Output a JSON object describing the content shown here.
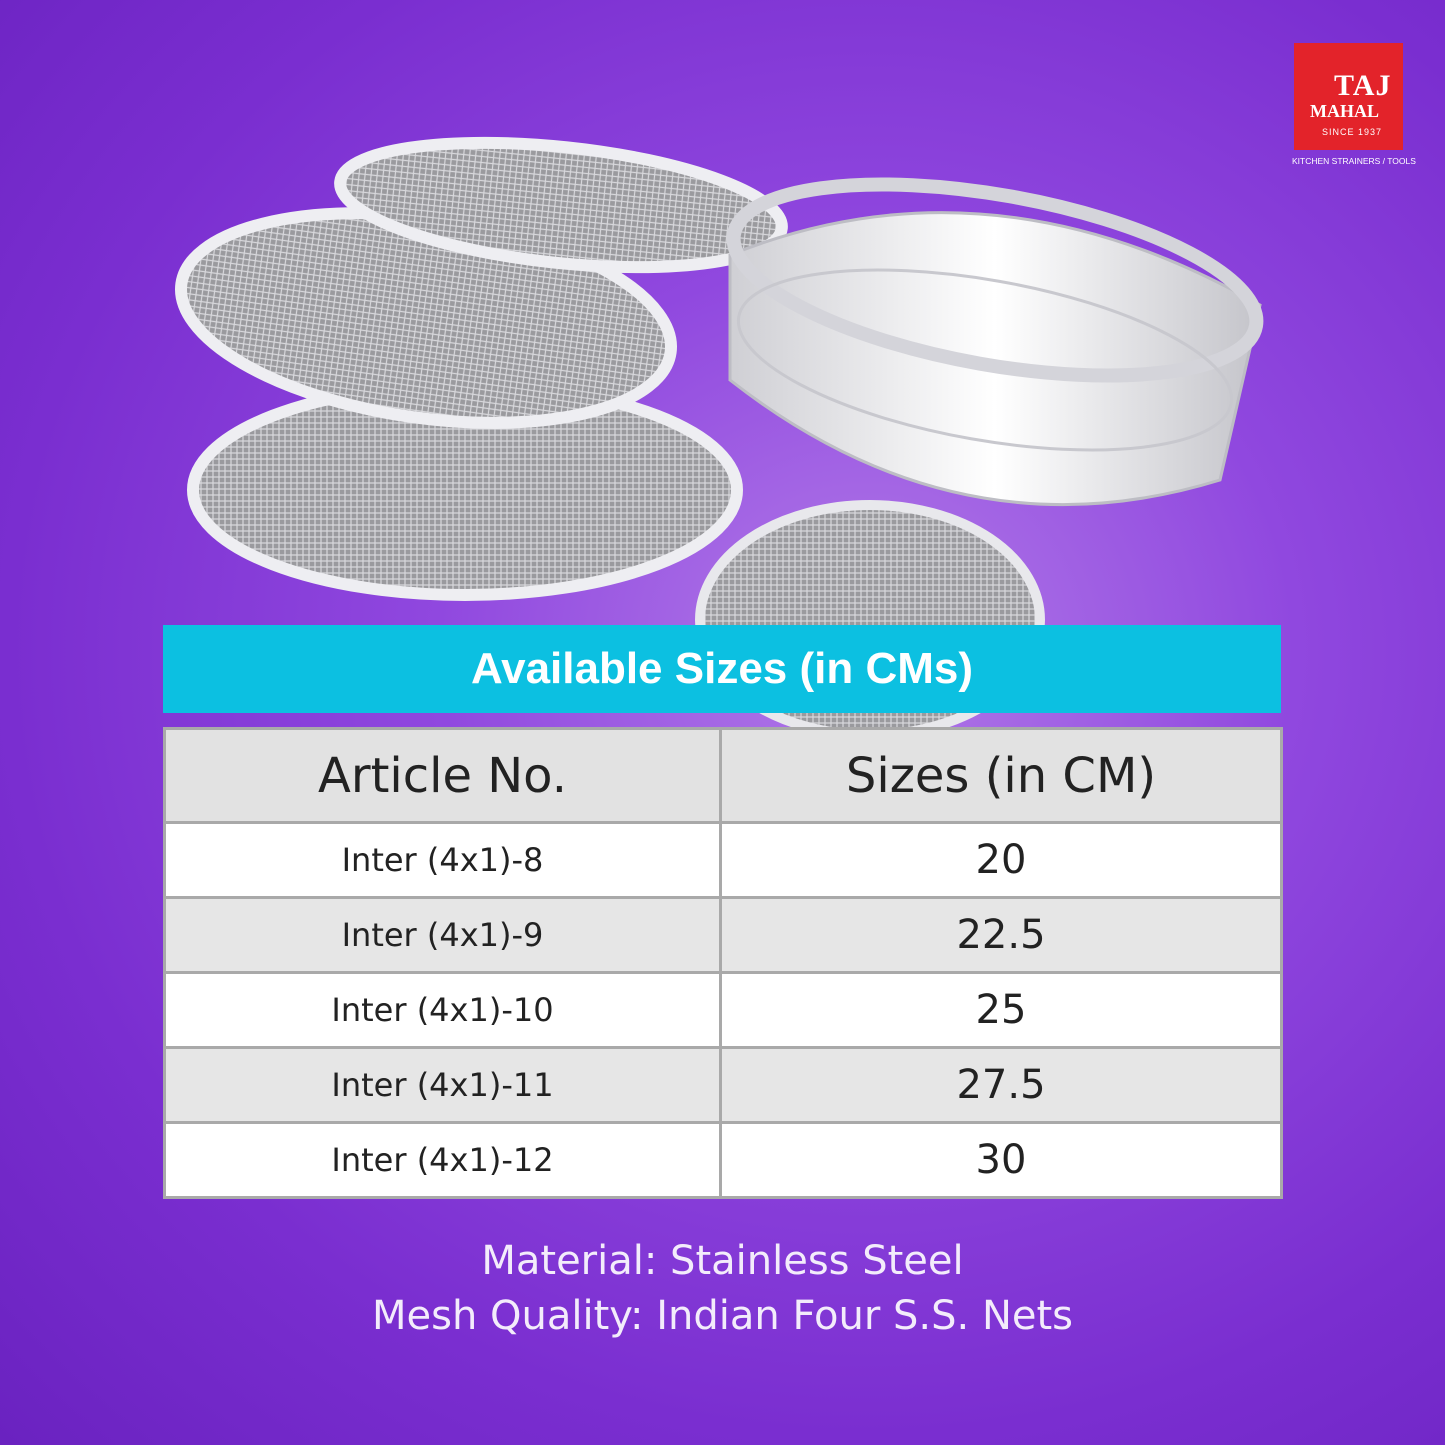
{
  "logo": {
    "brand_top": "TAJ",
    "brand_bottom": "MAHAL",
    "since": "SINCE 1937",
    "tagline": "KITCHEN STRAINERS / TOOLS"
  },
  "banner": {
    "title": "Available Sizes (in CMs)"
  },
  "table": {
    "headers": [
      "Article No.",
      "Sizes (in CM)"
    ],
    "rows": [
      [
        "Inter (4x1)-8",
        "20"
      ],
      [
        "Inter (4x1)-9",
        "22.5"
      ],
      [
        "Inter (4x1)-10",
        "25"
      ],
      [
        "Inter (4x1)-11",
        "27.5"
      ],
      [
        "Inter (4x1)-12",
        "30"
      ]
    ]
  },
  "footer": {
    "material": "Material: Stainless Steel",
    "mesh": "Mesh Quality: Indian Four S.S. Nets"
  }
}
